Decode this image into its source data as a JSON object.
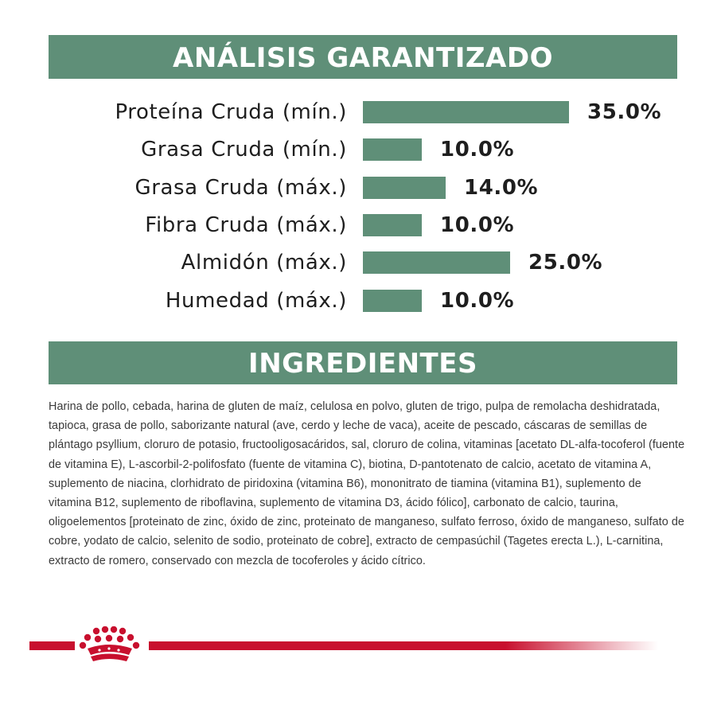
{
  "analysis": {
    "title": "ANÁLISIS GARANTIZADO",
    "rows": [
      {
        "label": "Proteína Cruda (mín.)",
        "value": "35.0%",
        "percent": 35.0
      },
      {
        "label": "Grasa Cruda (mín.)",
        "value": "10.0%",
        "percent": 10.0
      },
      {
        "label": "Grasa Cruda (máx.)",
        "value": "14.0%",
        "percent": 14.0
      },
      {
        "label": "Fibra Cruda (máx.)",
        "value": "10.0%",
        "percent": 10.0
      },
      {
        "label": "Almidón (máx.)",
        "value": "25.0%",
        "percent": 25.0
      },
      {
        "label": "Humedad (máx.)",
        "value": "10.0%",
        "percent": 10.0
      }
    ]
  },
  "ingredients": {
    "title": "INGREDIENTES",
    "text": "Harina de pollo, cebada, harina de gluten de maíz, celulosa en polvo, gluten de trigo, pulpa de remolacha deshidratada, tapioca, grasa de pollo, saborizante natural (ave, cerdo y leche de vaca), aceite de pescado, cáscaras de semillas de plántago psyllium, cloruro de potasio, fructooligosacáridos, sal, cloruro de colina, vitaminas [acetato DL-alfa-tocoferol (fuente de vitamina E), L-ascorbil-2-polifosfato (fuente de vitamina C), biotina, D-pantotenato de calcio, acetato de vitamina A, suplemento de niacina, clorhidrato de piridoxina (vitamina B6), mononitrato de tiamina (vitamina B1), suplemento de vitamina B12, suplemento de riboflavina, suplemento de vitamina D3, ácido fólico], carbonato de calcio, taurina, oligoelementos [proteinato de zinc, óxido de zinc, proteinato de manganeso, sulfato ferroso, óxido de manganeso, sulfato de cobre, yodato de calcio, selenito de sodio, proteinato de cobre], extracto de cempasúchil (Tagetes erecta L.), L-carnitina, extracto de romero, conservado con mezcla de tocoferoles y ácido cítrico."
  },
  "colors": {
    "accent_green": "#5f8f78",
    "brand_red": "#c8102e"
  },
  "footer": {
    "logo_icon": "crown-icon"
  }
}
